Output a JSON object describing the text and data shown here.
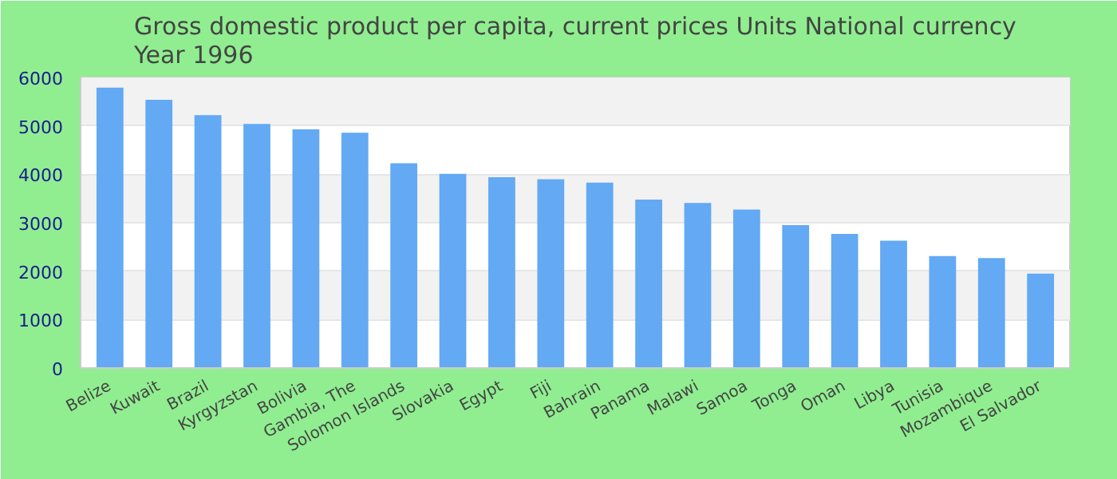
{
  "chart_data": {
    "type": "bar",
    "title": "Gross domestic product per capita, current prices Units National currency\nYear 1996",
    "categories": [
      "Belize",
      "Kuwait",
      "Brazil",
      "Kyrgyzstan",
      "Bolivia",
      "Gambia, The",
      "Solomon Islands",
      "Slovakia",
      "Egypt",
      "Fiji",
      "Bahrain",
      "Panama",
      "Malawi",
      "Samoa",
      "Tonga",
      "Oman",
      "Libya",
      "Tunisia",
      "Mozambique",
      "El Salvador"
    ],
    "values": [
      5790,
      5540,
      5220,
      5040,
      4930,
      4860,
      4230,
      4010,
      3940,
      3900,
      3830,
      3480,
      3410,
      3270,
      2950,
      2770,
      2630,
      2310,
      2270,
      1950
    ],
    "color": "#63a9f3",
    "ylim": [
      0,
      6000
    ],
    "yticks": [
      0,
      1000,
      2000,
      3000,
      4000,
      5000,
      6000
    ],
    "grid": "y"
  }
}
